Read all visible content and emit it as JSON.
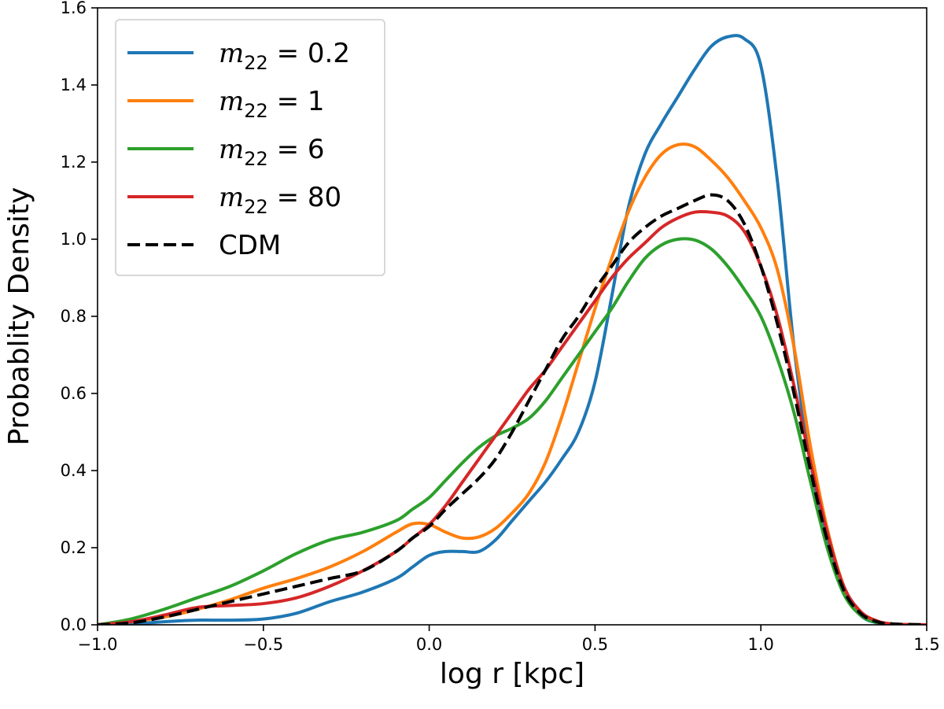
{
  "chart_data": {
    "type": "line",
    "xlabel": "log r [kpc]",
    "ylabel": "Probablity Density",
    "xlim": [
      -1.0,
      1.5
    ],
    "ylim": [
      0.0,
      1.6
    ],
    "xticks": [
      -1.0,
      -0.5,
      0.0,
      0.5,
      1.0,
      1.5
    ],
    "yticks": [
      0.0,
      0.2,
      0.4,
      0.6,
      0.8,
      1.0,
      1.2,
      1.4,
      1.6
    ],
    "xtick_labels": [
      "−1.0",
      "−0.5",
      "0.0",
      "0.5",
      "1.0",
      "1.5"
    ],
    "ytick_labels": [
      "0.0",
      "0.2",
      "0.4",
      "0.6",
      "0.8",
      "1.0",
      "1.2",
      "1.4",
      "1.6"
    ],
    "grid": false,
    "legend_position": "top-left",
    "series": [
      {
        "name": "m22 = 0.2",
        "legend_var": "m",
        "legend_sub": "22",
        "legend_rest": " = 0.2",
        "color": "#1f77b4",
        "dashed": false,
        "x": [
          -1.0,
          -0.9,
          -0.8,
          -0.7,
          -0.6,
          -0.5,
          -0.4,
          -0.3,
          -0.2,
          -0.1,
          -0.05,
          0.0,
          0.05,
          0.1,
          0.15,
          0.2,
          0.25,
          0.3,
          0.35,
          0.4,
          0.45,
          0.5,
          0.55,
          0.6,
          0.65,
          0.7,
          0.75,
          0.8,
          0.85,
          0.9,
          0.95,
          1.0,
          1.05,
          1.1,
          1.15,
          1.2,
          1.25,
          1.3,
          1.35,
          1.4,
          1.5
        ],
        "y": [
          0.0,
          0.002,
          0.008,
          0.012,
          0.012,
          0.015,
          0.03,
          0.06,
          0.085,
          0.12,
          0.15,
          0.18,
          0.19,
          0.19,
          0.19,
          0.22,
          0.27,
          0.32,
          0.37,
          0.43,
          0.5,
          0.63,
          0.85,
          1.08,
          1.22,
          1.3,
          1.37,
          1.44,
          1.5,
          1.525,
          1.52,
          1.45,
          1.15,
          0.72,
          0.42,
          0.22,
          0.09,
          0.025,
          0.005,
          0.001,
          0.0
        ]
      },
      {
        "name": "m22 = 1",
        "legend_var": "m",
        "legend_sub": "22",
        "legend_rest": " = 1",
        "color": "#ff7f0e",
        "dashed": false,
        "x": [
          -1.0,
          -0.9,
          -0.8,
          -0.7,
          -0.6,
          -0.5,
          -0.4,
          -0.3,
          -0.2,
          -0.1,
          -0.05,
          0.0,
          0.05,
          0.1,
          0.15,
          0.2,
          0.25,
          0.3,
          0.35,
          0.4,
          0.45,
          0.5,
          0.55,
          0.6,
          0.65,
          0.7,
          0.75,
          0.8,
          0.85,
          0.9,
          0.95,
          1.0,
          1.05,
          1.1,
          1.15,
          1.2,
          1.25,
          1.3,
          1.35,
          1.4,
          1.5
        ],
        "y": [
          0.0,
          0.008,
          0.02,
          0.04,
          0.065,
          0.095,
          0.12,
          0.15,
          0.19,
          0.24,
          0.262,
          0.26,
          0.24,
          0.225,
          0.228,
          0.25,
          0.29,
          0.34,
          0.42,
          0.54,
          0.68,
          0.82,
          0.95,
          1.07,
          1.16,
          1.22,
          1.245,
          1.24,
          1.205,
          1.16,
          1.1,
          1.03,
          0.92,
          0.72,
          0.46,
          0.25,
          0.1,
          0.035,
          0.01,
          0.002,
          0.0
        ]
      },
      {
        "name": "m22 = 6",
        "legend_var": "m",
        "legend_sub": "22",
        "legend_rest": " = 6",
        "color": "#2ca02c",
        "dashed": false,
        "x": [
          -1.0,
          -0.9,
          -0.8,
          -0.7,
          -0.6,
          -0.5,
          -0.4,
          -0.3,
          -0.2,
          -0.1,
          -0.05,
          0.0,
          0.05,
          0.1,
          0.15,
          0.2,
          0.25,
          0.3,
          0.35,
          0.4,
          0.45,
          0.5,
          0.55,
          0.6,
          0.65,
          0.7,
          0.75,
          0.8,
          0.85,
          0.9,
          0.95,
          1.0,
          1.05,
          1.1,
          1.15,
          1.2,
          1.25,
          1.3,
          1.35,
          1.4,
          1.5
        ],
        "y": [
          0.0,
          0.015,
          0.04,
          0.07,
          0.1,
          0.14,
          0.185,
          0.22,
          0.24,
          0.27,
          0.3,
          0.33,
          0.375,
          0.42,
          0.46,
          0.49,
          0.51,
          0.535,
          0.58,
          0.64,
          0.7,
          0.76,
          0.82,
          0.89,
          0.95,
          0.985,
          1.0,
          0.998,
          0.975,
          0.93,
          0.87,
          0.8,
          0.69,
          0.55,
          0.37,
          0.2,
          0.08,
          0.025,
          0.006,
          0.001,
          0.0
        ]
      },
      {
        "name": "m22 = 80",
        "legend_var": "m",
        "legend_sub": "22",
        "legend_rest": " = 80",
        "color": "#d62728",
        "dashed": false,
        "x": [
          -1.0,
          -0.9,
          -0.8,
          -0.7,
          -0.6,
          -0.5,
          -0.4,
          -0.3,
          -0.2,
          -0.1,
          -0.05,
          0.0,
          0.05,
          0.1,
          0.15,
          0.2,
          0.25,
          0.3,
          0.35,
          0.4,
          0.45,
          0.5,
          0.55,
          0.6,
          0.65,
          0.7,
          0.75,
          0.8,
          0.85,
          0.9,
          0.95,
          1.0,
          1.05,
          1.1,
          1.15,
          1.2,
          1.25,
          1.3,
          1.35,
          1.4,
          1.5
        ],
        "y": [
          0.0,
          0.008,
          0.025,
          0.045,
          0.05,
          0.055,
          0.07,
          0.1,
          0.14,
          0.19,
          0.225,
          0.26,
          0.31,
          0.37,
          0.43,
          0.49,
          0.55,
          0.61,
          0.66,
          0.72,
          0.78,
          0.84,
          0.9,
          0.95,
          0.99,
          1.03,
          1.055,
          1.07,
          1.07,
          1.06,
          1.02,
          0.93,
          0.8,
          0.62,
          0.42,
          0.24,
          0.1,
          0.035,
          0.01,
          0.002,
          0.0
        ]
      },
      {
        "name": "CDM",
        "legend_var": "",
        "legend_sub": "",
        "legend_rest": "CDM",
        "color": "#000000",
        "dashed": true,
        "x": [
          -1.0,
          -0.9,
          -0.8,
          -0.7,
          -0.6,
          -0.5,
          -0.4,
          -0.3,
          -0.2,
          -0.1,
          -0.05,
          0.0,
          0.05,
          0.1,
          0.15,
          0.2,
          0.25,
          0.3,
          0.35,
          0.4,
          0.45,
          0.5,
          0.55,
          0.6,
          0.65,
          0.7,
          0.75,
          0.8,
          0.85,
          0.9,
          0.95,
          1.0,
          1.05,
          1.1,
          1.15,
          1.2,
          1.25,
          1.3,
          1.35,
          1.4,
          1.5
        ],
        "y": [
          0.0,
          0.005,
          0.02,
          0.04,
          0.06,
          0.08,
          0.1,
          0.12,
          0.14,
          0.19,
          0.225,
          0.255,
          0.3,
          0.34,
          0.38,
          0.43,
          0.5,
          0.58,
          0.66,
          0.74,
          0.8,
          0.87,
          0.93,
          0.99,
          1.03,
          1.06,
          1.08,
          1.1,
          1.115,
          1.1,
          1.04,
          0.93,
          0.78,
          0.6,
          0.4,
          0.22,
          0.09,
          0.03,
          0.008,
          0.002,
          0.0
        ]
      }
    ]
  }
}
